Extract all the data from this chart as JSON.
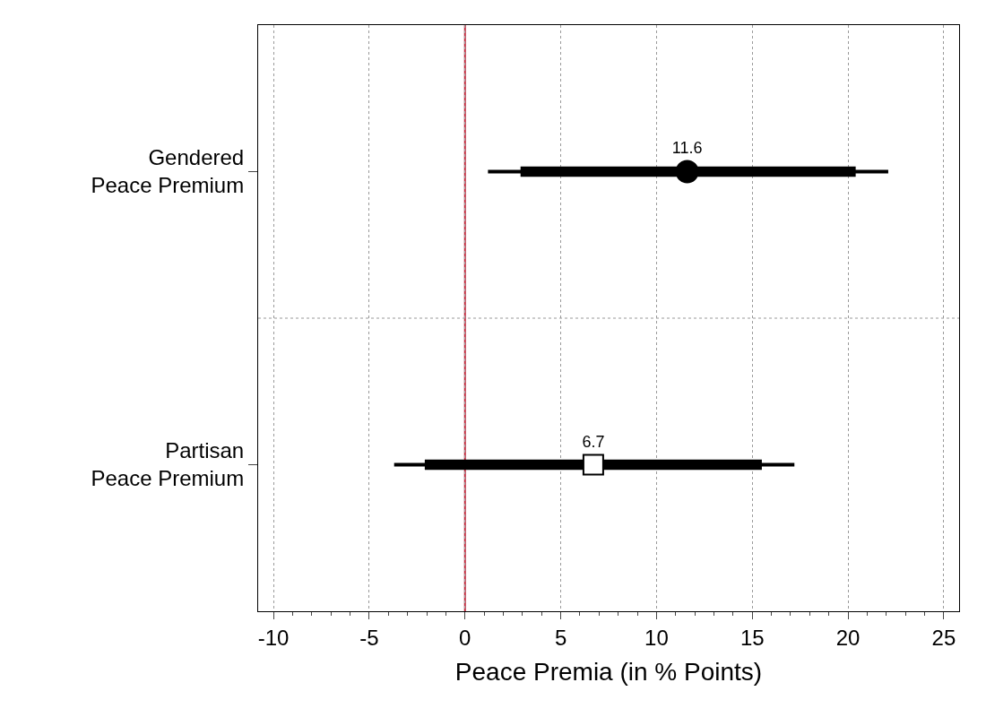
{
  "chart_data": {
    "type": "scatter",
    "orientation": "horizontal",
    "categories": [
      "Gendered\nPeace Premium",
      "Partisan\nPeace Premium"
    ],
    "xlabel": "Peace Premia (in % Points)",
    "xlim": [
      -10.8,
      25.8
    ],
    "xticks": [
      -10,
      -5,
      0,
      5,
      10,
      15,
      20,
      25
    ],
    "grid": true,
    "series": [
      {
        "type": "bar",
        "color": "#000000",
        "base": [
          1.2,
          -3.7
        ],
        "values": [
          20.9,
          20.9
        ]
      },
      {
        "type": "bar",
        "color": "#000000",
        "base": [
          2.9,
          -2.1
        ],
        "values": [
          17.5,
          17.6
        ]
      },
      {
        "marker": "circle",
        "color": "#000000",
        "values": [
          11.6,
          null
        ],
        "value_labels": [
          "11.6",
          null
        ]
      },
      {
        "marker": "square",
        "color": "#ffffff",
        "values": [
          null,
          6.7
        ],
        "value_labels": [
          null,
          "6.7"
        ]
      }
    ],
    "ref_lines": [
      {
        "axis": "x",
        "value": 0,
        "color": "#c0283c"
      }
    ]
  }
}
